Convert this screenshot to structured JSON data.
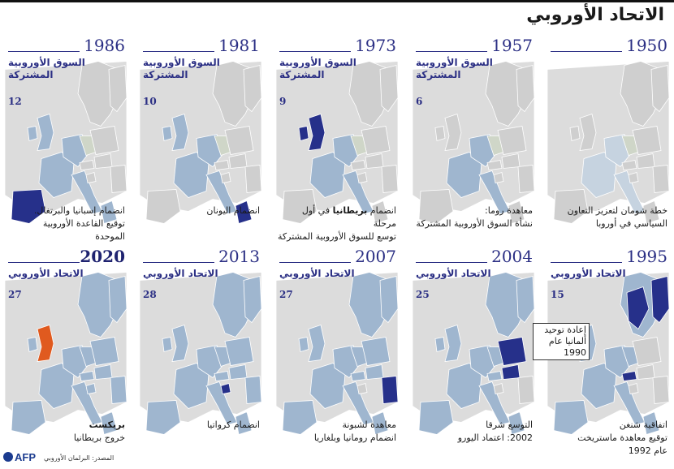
{
  "title": "الاتحاد الأوروبي",
  "colors": {
    "accent": "#2b2f84",
    "member": "#9fb6cf",
    "new_member": "#26308a",
    "brexit": "#e05a1f",
    "non_member": "#cfcfcf",
    "gdr": "#cfd6c8"
  },
  "panels": [
    {
      "year": "1986",
      "label": "السوق الأوروبية المشتركة",
      "count": "12",
      "caption": [
        "انضمام إسبانيا والبرتغال.",
        "توقيع القاعدة الأوروبية",
        "الموحدة"
      ],
      "highlight": "iberia",
      "bold": false
    },
    {
      "year": "1981",
      "label": "السوق الأوروبية المشتركة",
      "count": "10",
      "caption": [
        "انضمام اليونان"
      ],
      "highlight": "greece",
      "bold": false
    },
    {
      "year": "1973",
      "label": "السوق الأوروبية المشتركة",
      "count": "9",
      "caption_strong_prefix": "انضمام ",
      "caption_strong": "بريطانيا",
      "caption_strong_suffix": " في أول مرحلة",
      "caption": [
        "توسع للسوق الأوروبية المشتركة"
      ],
      "highlight": "uk",
      "bold": false
    },
    {
      "year": "1957",
      "label": "السوق الأوروبية المشتركة",
      "count": "6",
      "caption": [
        "معاهدة روما:",
        "نشأة السوق الأوروبية المشتركة"
      ],
      "highlight": "none",
      "bold": false
    },
    {
      "year": "1950",
      "label": "",
      "count": "",
      "caption": [
        "خطة شومان لتعزيز التعاون",
        "السياسي في أوروبا"
      ],
      "highlight": "none",
      "bold": false
    },
    {
      "year": "2020",
      "label": "الاتحاد الأوروبي",
      "count": "27",
      "caption_title": "بريكست",
      "caption": [
        "خروج بريطانيا"
      ],
      "highlight": "brexit",
      "bold": true
    },
    {
      "year": "2013",
      "label": "الاتحاد الأوروبي",
      "count": "28",
      "caption": [
        "انضمام كرواتيا"
      ],
      "highlight": "croatia",
      "bold": false
    },
    {
      "year": "2007",
      "label": "الاتحاد الأوروبي",
      "count": "27",
      "caption": [
        "معاهدة لشبونة",
        "انضمام رومانيا وبلغاريا"
      ],
      "highlight": "romania",
      "bold": false
    },
    {
      "year": "2004",
      "label": "الاتحاد الأوروبي",
      "count": "25",
      "caption": [
        "التوسع شرقا",
        "2002: اعتماد اليورو"
      ],
      "highlight": "east",
      "bold": false
    },
    {
      "year": "1995",
      "label": "الاتحاد الأوروبي",
      "count": "15",
      "caption": [
        "اتفاقية شنغن",
        "توقيع معاهدة ماستريخت",
        "عام 1992"
      ],
      "highlight": "nordic",
      "bold": false
    }
  ],
  "callout": [
    "إعادة توحيد",
    "ألمانيا عام 1990"
  ],
  "source": "المصدر: البرلمان الأوروبي",
  "logo": "AFP"
}
